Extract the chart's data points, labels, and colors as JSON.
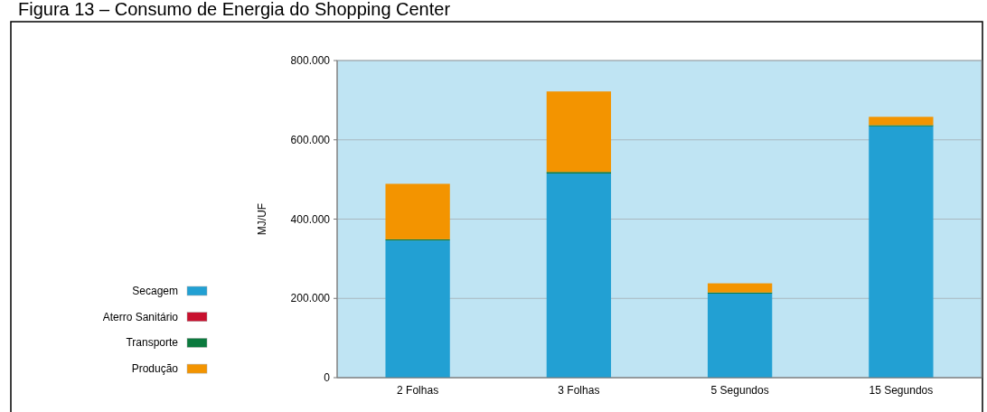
{
  "chart_data": {
    "type": "bar",
    "title": "Figura 13 – Consumo de Energia do Shopping Center",
    "ylabel": "MJ/UF",
    "categories": [
      "2 Folhas",
      "3 Folhas",
      "5 Segundos",
      "15 Segundos"
    ],
    "stacked": true,
    "series": [
      {
        "name": "Secagem",
        "color": "#22a0d3",
        "values": [
          346000,
          515000,
          212000,
          634000
        ]
      },
      {
        "name": "Aterro Sanitário",
        "color": "#c8102e",
        "values": [
          0,
          0,
          0,
          0
        ]
      },
      {
        "name": "Transporte",
        "color": "#0b7a3e",
        "values": [
          3000,
          4000,
          3000,
          3000
        ]
      },
      {
        "name": "Produção",
        "color": "#f39400",
        "values": [
          140000,
          203000,
          23000,
          21000
        ]
      }
    ],
    "ylim": [
      0,
      800000
    ],
    "yticks": [
      0,
      {
        "value": 200000,
        "label": "200.000"
      },
      {
        "value": 400000,
        "label": "400.000"
      },
      {
        "value": 600000,
        "label": "600.000"
      },
      {
        "value": 800000,
        "label": "800.000"
      }
    ],
    "grid": "y",
    "legend": "left"
  }
}
